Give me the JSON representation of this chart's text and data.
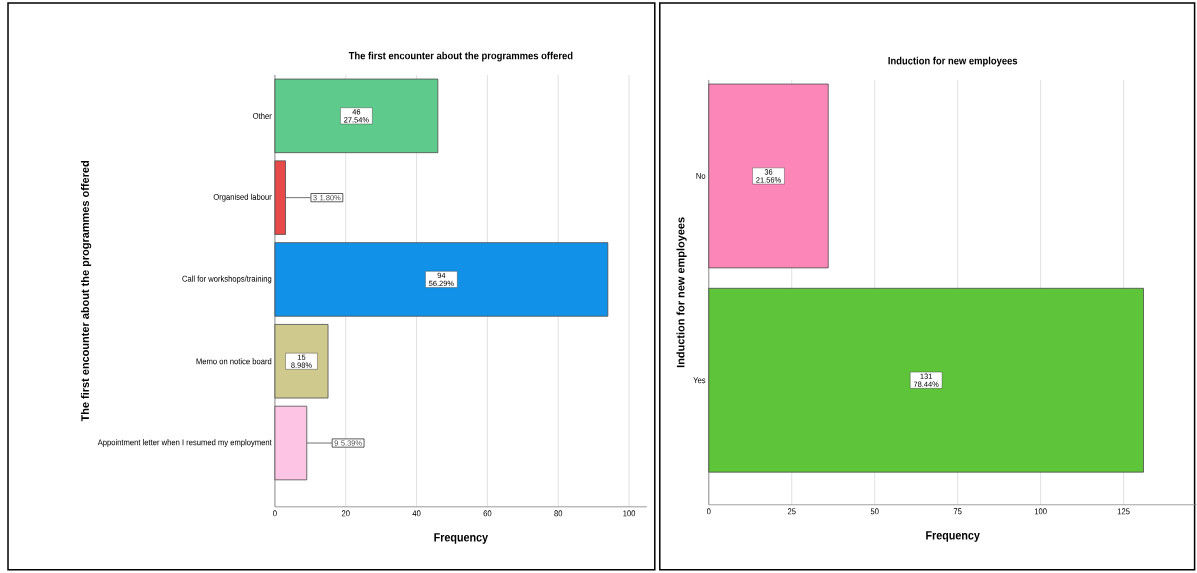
{
  "chart_data": [
    {
      "type": "bar",
      "orientation": "horizontal",
      "title": "The first encounter about the programmes offered",
      "xlabel": "Frequency",
      "ylabel": "The first encounter about the programmes offered",
      "categories": [
        "Other",
        "Organised labour",
        "Call for workshops/training",
        "Memo on notice board",
        "Appointment letter when I resumed my employment"
      ],
      "values": [
        46,
        3,
        94,
        15,
        9
      ],
      "colors": [
        "#5ecb8c",
        "#e84a4a",
        "#1192e8",
        "#cfc98e",
        "#fdc5e3"
      ],
      "value_labels": [
        "46 27.54%",
        "3 1.80%",
        "94 56.29%",
        "15 8.98%",
        "9 5.39%"
      ],
      "xlim": [
        0,
        105
      ],
      "xticks": [
        0,
        20,
        40,
        60,
        80,
        100
      ],
      "grid": "x"
    },
    {
      "type": "bar",
      "orientation": "horizontal",
      "title": "Induction for new employees",
      "xlabel": "Frequency",
      "ylabel": "Induction for new employees",
      "categories": [
        "No",
        "Yes"
      ],
      "values": [
        36,
        131
      ],
      "colors": [
        "#fd86b8",
        "#5ec43a"
      ],
      "value_labels": [
        "36 21.56%",
        "131 78.44%"
      ],
      "xlim": [
        0,
        147
      ],
      "xticks": [
        0,
        25,
        50,
        75,
        100,
        125
      ],
      "grid": "x"
    }
  ]
}
